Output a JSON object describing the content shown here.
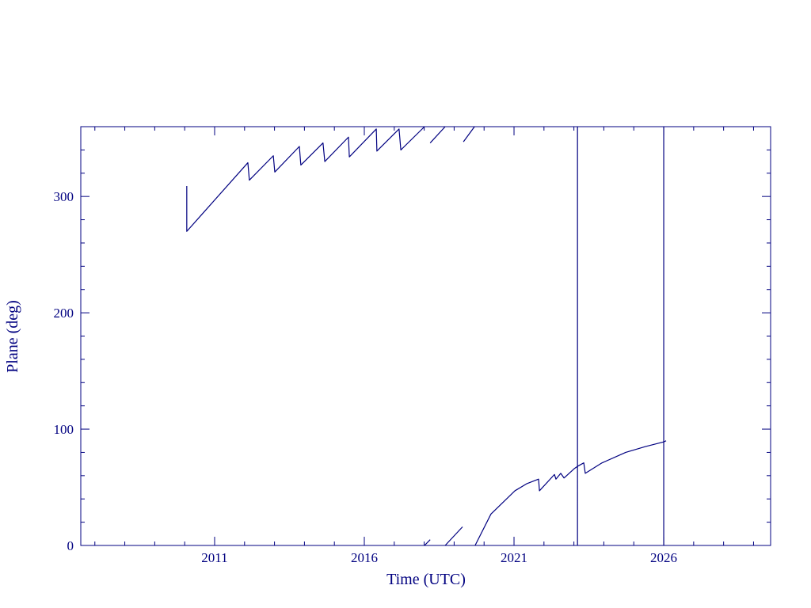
{
  "chart_data": {
    "type": "line",
    "x_label": "Time (UTC)",
    "y_label": "Plane (deg)",
    "color": "#000080",
    "xlim": [
      2006.53,
      2029.57
    ],
    "ylim": [
      0,
      360
    ],
    "xticks": [
      2011,
      2016,
      2021,
      2026
    ],
    "yticks": [
      0,
      100,
      200,
      300
    ],
    "xminorticks": [
      2007,
      2008,
      2009,
      2010,
      2012,
      2013,
      2014,
      2015,
      2017,
      2018,
      2019,
      2020,
      2022,
      2023,
      2024,
      2025,
      2027,
      2028,
      2029
    ],
    "yminorticks": [
      20,
      40,
      60,
      80,
      120,
      140,
      160,
      180,
      220,
      240,
      260,
      280,
      320,
      340
    ],
    "x": [
      2010.07,
      2010.07,
      2012.11,
      2012.16,
      2012.96,
      2013.01,
      2013.83,
      2013.88,
      2014.62,
      2014.68,
      2015.47,
      2015.5,
      2016.4,
      2016.42,
      2017.16,
      2017.22,
      2018.01,
      null,
      2018.01,
      2018.2,
      null,
      2018.2,
      2018.7,
      null,
      2018.7,
      2019.28,
      null,
      2019.31,
      2019.68,
      null,
      2019.7,
      2020.23,
      2021.03,
      2021.42,
      2021.82,
      2021.85,
      2022.35,
      2022.4,
      2022.56,
      2022.67,
      2023.01,
      2023.12,
      2023.12,
      null,
      2023.12,
      2023.12,
      2023.33,
      2023.38,
      2023.94,
      2024.73,
      2025.39,
      2026.0,
      2026.0,
      null,
      2026.0,
      2026.0,
      2026.08
    ],
    "values": [
      309,
      270,
      329,
      314,
      335,
      321,
      343,
      327,
      346,
      330,
      351,
      334,
      358,
      339,
      358,
      340,
      360,
      null,
      0,
      5,
      null,
      346,
      360,
      null,
      0,
      16,
      null,
      347,
      360,
      null,
      0,
      27,
      47,
      53,
      57,
      47,
      61,
      57,
      62,
      58,
      66,
      68,
      360,
      null,
      0,
      68,
      71,
      62,
      71,
      80,
      85,
      89,
      360,
      null,
      0,
      89,
      90
    ]
  }
}
